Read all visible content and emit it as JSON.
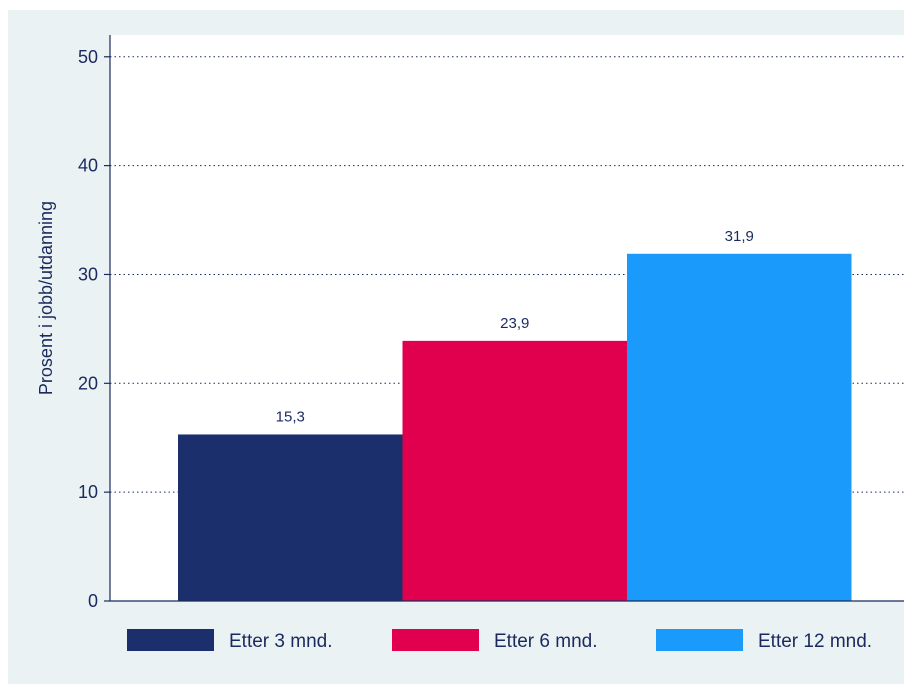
{
  "chart_data": {
    "type": "bar",
    "title": "",
    "xlabel": "",
    "ylabel": "Prosent i jobb/utdanning",
    "ylim": [
      0,
      52
    ],
    "yticks": [
      0,
      10,
      20,
      30,
      40,
      50
    ],
    "grid": true,
    "legend_position": "bottom",
    "series": [
      {
        "name": "Etter 3 mnd.",
        "value": 15.3,
        "label": "15,3",
        "color": "#1a2f6b"
      },
      {
        "name": "Etter 6 mnd.",
        "value": 23.9,
        "label": "23,9",
        "color": "#e0004d"
      },
      {
        "name": "Etter 12 mnd.",
        "value": 31.9,
        "label": "31,9",
        "color": "#1a9bfc"
      }
    ]
  },
  "colors": {
    "background": "#eaf2f3",
    "plot_background": "#ffffff",
    "axis": "#1a2a5e",
    "grid": "#1a2a5e"
  }
}
